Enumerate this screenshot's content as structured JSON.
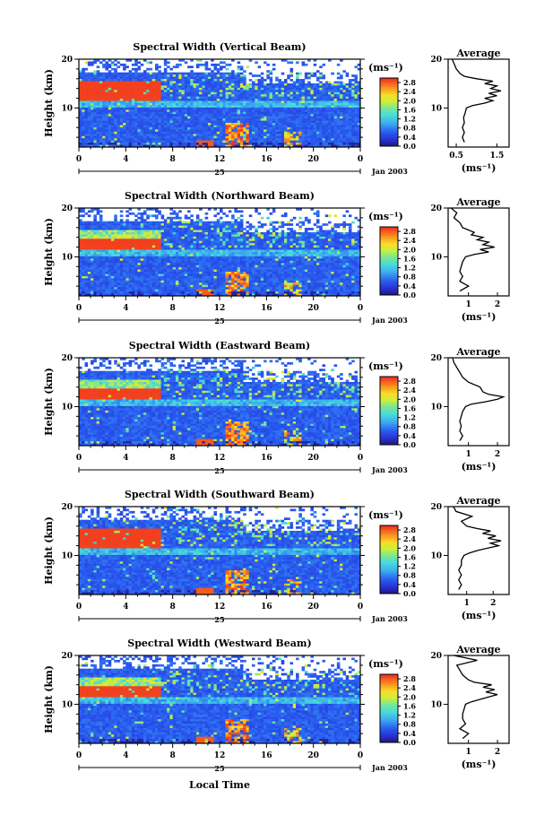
{
  "figure": {
    "ylabel": "Height (km)",
    "xlabel": "Local Time",
    "date_label": "Jan 2003",
    "day_label": "25",
    "colorbar_unit": "(ms⁻¹)",
    "avg_title": "Average",
    "avg_xlabel": "(ms⁻¹)"
  },
  "chart_data": [
    {
      "type": "heatmap",
      "title": "Spectral Width (Vertical Beam)",
      "x_ticks": [
        "0",
        "4",
        "8",
        "12",
        "16",
        "20",
        "0"
      ],
      "y_ticks": [
        "20",
        "10"
      ],
      "xlim": [
        0,
        24
      ],
      "ylim": [
        2,
        20
      ],
      "colorbar_ticks": [
        "2.8",
        "2.4",
        "2.0",
        "1.6",
        "1.2",
        "0.8",
        "0.4",
        "0.0"
      ],
      "colorbar_range": [
        0,
        3.0
      ],
      "average_profile": {
        "x_ticks": [
          "0.5",
          "1.5"
        ],
        "xlim": [
          0.3,
          1.8
        ],
        "heights": [
          3,
          4,
          5,
          6,
          7,
          8,
          9,
          10,
          10.5,
          11,
          11.5,
          12,
          12.5,
          13,
          13.5,
          14,
          14.5,
          15,
          15.5,
          16,
          16.5,
          17,
          18,
          19,
          20
        ],
        "values": [
          0.7,
          0.65,
          0.7,
          0.65,
          0.7,
          0.68,
          0.72,
          0.75,
          0.9,
          1.2,
          1.4,
          1.2,
          1.5,
          1.3,
          1.6,
          1.35,
          1.5,
          1.2,
          1.4,
          1.0,
          0.7,
          0.6,
          0.5,
          0.45,
          0.4
        ]
      }
    },
    {
      "type": "heatmap",
      "title": "Spectral Width (Northward Beam)",
      "x_ticks": [
        "0",
        "4",
        "8",
        "12",
        "16",
        "20",
        "0"
      ],
      "y_ticks": [
        "20",
        "10"
      ],
      "xlim": [
        0,
        24
      ],
      "ylim": [
        2,
        20
      ],
      "colorbar_ticks": [
        "2.8",
        "2.4",
        "2.0",
        "1.6",
        "1.2",
        "0.8",
        "0.4",
        "0.0"
      ],
      "colorbar_range": [
        0,
        3.0
      ],
      "average_profile": {
        "x_ticks": [
          "1",
          "2"
        ],
        "xlim": [
          0.3,
          2.4
        ],
        "heights": [
          3,
          4,
          5,
          6,
          7,
          8,
          9,
          10,
          10.5,
          11,
          11.5,
          12,
          12.5,
          13,
          13.5,
          14,
          14.5,
          15,
          16,
          17,
          18,
          19,
          20
        ],
        "values": [
          0.7,
          1.0,
          0.7,
          0.8,
          0.7,
          0.75,
          0.8,
          0.9,
          1.2,
          1.7,
          1.4,
          1.9,
          1.5,
          1.7,
          1.3,
          1.5,
          1.1,
          1.2,
          0.8,
          0.7,
          0.5,
          0.6,
          0.4
        ]
      }
    },
    {
      "type": "heatmap",
      "title": "Spectral Width (Eastward Beam)",
      "x_ticks": [
        "0",
        "4",
        "8",
        "12",
        "16",
        "20",
        "0"
      ],
      "y_ticks": [
        "20",
        "10"
      ],
      "xlim": [
        0,
        24
      ],
      "ylim": [
        2,
        20
      ],
      "colorbar_ticks": [
        "2.8",
        "2.4",
        "2.0",
        "1.6",
        "1.2",
        "0.8",
        "0.4",
        "0.0"
      ],
      "colorbar_range": [
        0,
        3.0
      ],
      "average_profile": {
        "x_ticks": [
          "1",
          "2"
        ],
        "xlim": [
          0.3,
          2.4
        ],
        "heights": [
          3,
          4,
          5,
          6,
          7,
          8,
          9,
          10,
          10.5,
          11,
          11.5,
          12,
          12.5,
          13,
          14,
          15,
          16,
          17,
          18,
          19,
          20
        ],
        "values": [
          0.7,
          0.8,
          0.7,
          0.75,
          0.7,
          0.75,
          0.8,
          0.9,
          1.1,
          1.6,
          2.0,
          2.2,
          1.7,
          1.5,
          1.4,
          1.0,
          0.8,
          0.7,
          0.6,
          0.5,
          0.45
        ]
      }
    },
    {
      "type": "heatmap",
      "title": "Spectral Width (Southward Beam)",
      "x_ticks": [
        "0",
        "4",
        "8",
        "12",
        "16",
        "20",
        "0"
      ],
      "y_ticks": [
        "20",
        "10"
      ],
      "xlim": [
        0,
        24
      ],
      "ylim": [
        2,
        20
      ],
      "colorbar_ticks": [
        "2.8",
        "2.4",
        "2.0",
        "1.6",
        "1.2",
        "0.8",
        "0.4",
        "0.0"
      ],
      "colorbar_range": [
        0,
        3.0
      ],
      "average_profile": {
        "x_ticks": [
          "1",
          "2"
        ],
        "xlim": [
          0.3,
          2.6
        ],
        "heights": [
          3,
          4,
          5,
          6,
          7,
          8,
          9,
          10,
          10.5,
          11,
          11.5,
          12,
          12.5,
          13,
          13.5,
          14,
          14.5,
          15,
          15.5,
          16,
          17,
          18,
          19,
          20
        ],
        "values": [
          0.7,
          0.8,
          0.7,
          0.8,
          0.7,
          0.8,
          0.8,
          0.9,
          1.1,
          1.4,
          1.8,
          2.2,
          1.9,
          2.3,
          1.8,
          2.1,
          1.6,
          1.9,
          1.4,
          1.0,
          0.8,
          1.2,
          0.6,
          0.5
        ]
      }
    },
    {
      "type": "heatmap",
      "title": "Spectral Width (Westward Beam)",
      "x_ticks": [
        "0",
        "4",
        "8",
        "12",
        "16",
        "20",
        "0"
      ],
      "y_ticks": [
        "20",
        "10"
      ],
      "xlim": [
        0,
        24
      ],
      "ylim": [
        2,
        20
      ],
      "colorbar_ticks": [
        "2.8",
        "2.4",
        "2.0",
        "1.6",
        "1.2",
        "0.8",
        "0.4",
        "0.0"
      ],
      "colorbar_range": [
        0,
        3.0
      ],
      "average_profile": {
        "x_ticks": [
          "1",
          "2"
        ],
        "xlim": [
          0.3,
          2.4
        ],
        "heights": [
          3,
          4,
          5,
          6,
          7,
          8,
          9,
          10,
          10.5,
          11,
          11.5,
          12,
          12.5,
          13,
          13.5,
          14,
          14.5,
          15,
          16,
          17,
          18,
          19,
          20
        ],
        "values": [
          0.8,
          1.0,
          0.7,
          0.9,
          0.8,
          0.8,
          0.85,
          0.9,
          1.1,
          1.4,
          1.7,
          2.0,
          1.6,
          1.9,
          1.5,
          1.8,
          1.2,
          1.0,
          0.8,
          0.7,
          0.6,
          1.3,
          0.5
        ]
      }
    }
  ]
}
